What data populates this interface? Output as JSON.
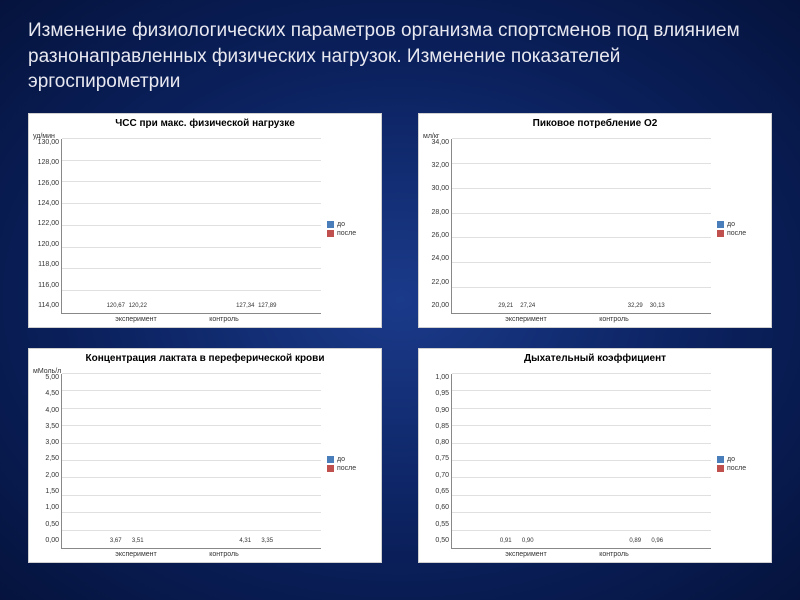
{
  "title": "Изменение физиологических параметров организма спортсменов под влиянием разнонаправленных физических нагрузок. Изменение показателей эргоспирометрии",
  "colors": {
    "bar_before": "#4a7ebb",
    "bar_after": "#c0504d",
    "grid": "#e0e0e0",
    "axis": "#888888",
    "text": "#333333",
    "bg": "#ffffff",
    "title_color": "#e8e8f0"
  },
  "legend": {
    "before": "до",
    "after": "после"
  },
  "x_categories": [
    "эксперимент",
    "контроль"
  ],
  "charts": {
    "hr": {
      "title": "ЧСС при макс. физической нагрузке",
      "y_label": "уд/мин",
      "ymin": 114,
      "ymax": 130,
      "ystep": 2,
      "groups": [
        {
          "label": "эксперимент",
          "before": 120.67,
          "after": 120.22,
          "before_txt": "120,67",
          "after_txt": "120,22"
        },
        {
          "label": "контроль",
          "before": 127.34,
          "after": 127.89,
          "before_txt": "127,34",
          "after_txt": "127,89"
        }
      ]
    },
    "o2": {
      "title": "Пиковое потребление О2",
      "y_label": "мл/кг",
      "ymin": 20,
      "ymax": 34,
      "ystep": 2,
      "groups": [
        {
          "label": "эксперимент",
          "before": 29.21,
          "after": 27.24,
          "before_txt": "29,21",
          "after_txt": "27,24"
        },
        {
          "label": "контроль",
          "before": 32.29,
          "after": 30.13,
          "before_txt": "32,29",
          "after_txt": "30,13"
        }
      ]
    },
    "lactate": {
      "title": "Концентрация лактата в переферической крови",
      "y_label": "мМоль/л",
      "ymin": 0,
      "ymax": 5,
      "ystep": 0.5,
      "groups": [
        {
          "label": "эксперимент",
          "before": 3.67,
          "after": 3.51,
          "before_txt": "3,67",
          "after_txt": "3,51"
        },
        {
          "label": "контроль",
          "before": 4.31,
          "after": 3.35,
          "before_txt": "4,31",
          "after_txt": "3,35"
        }
      ]
    },
    "resp": {
      "title": "Дыхательный коэффициент",
      "y_label": "",
      "ymin": 0.5,
      "ymax": 1.0,
      "ystep": 0.05,
      "groups": [
        {
          "label": "эксперимент",
          "before": 0.91,
          "after": 0.9,
          "before_txt": "0,91",
          "after_txt": "0,90"
        },
        {
          "label": "контроль",
          "before": 0.89,
          "after": 0.96,
          "before_txt": "0,89",
          "after_txt": "0,96"
        }
      ]
    }
  }
}
